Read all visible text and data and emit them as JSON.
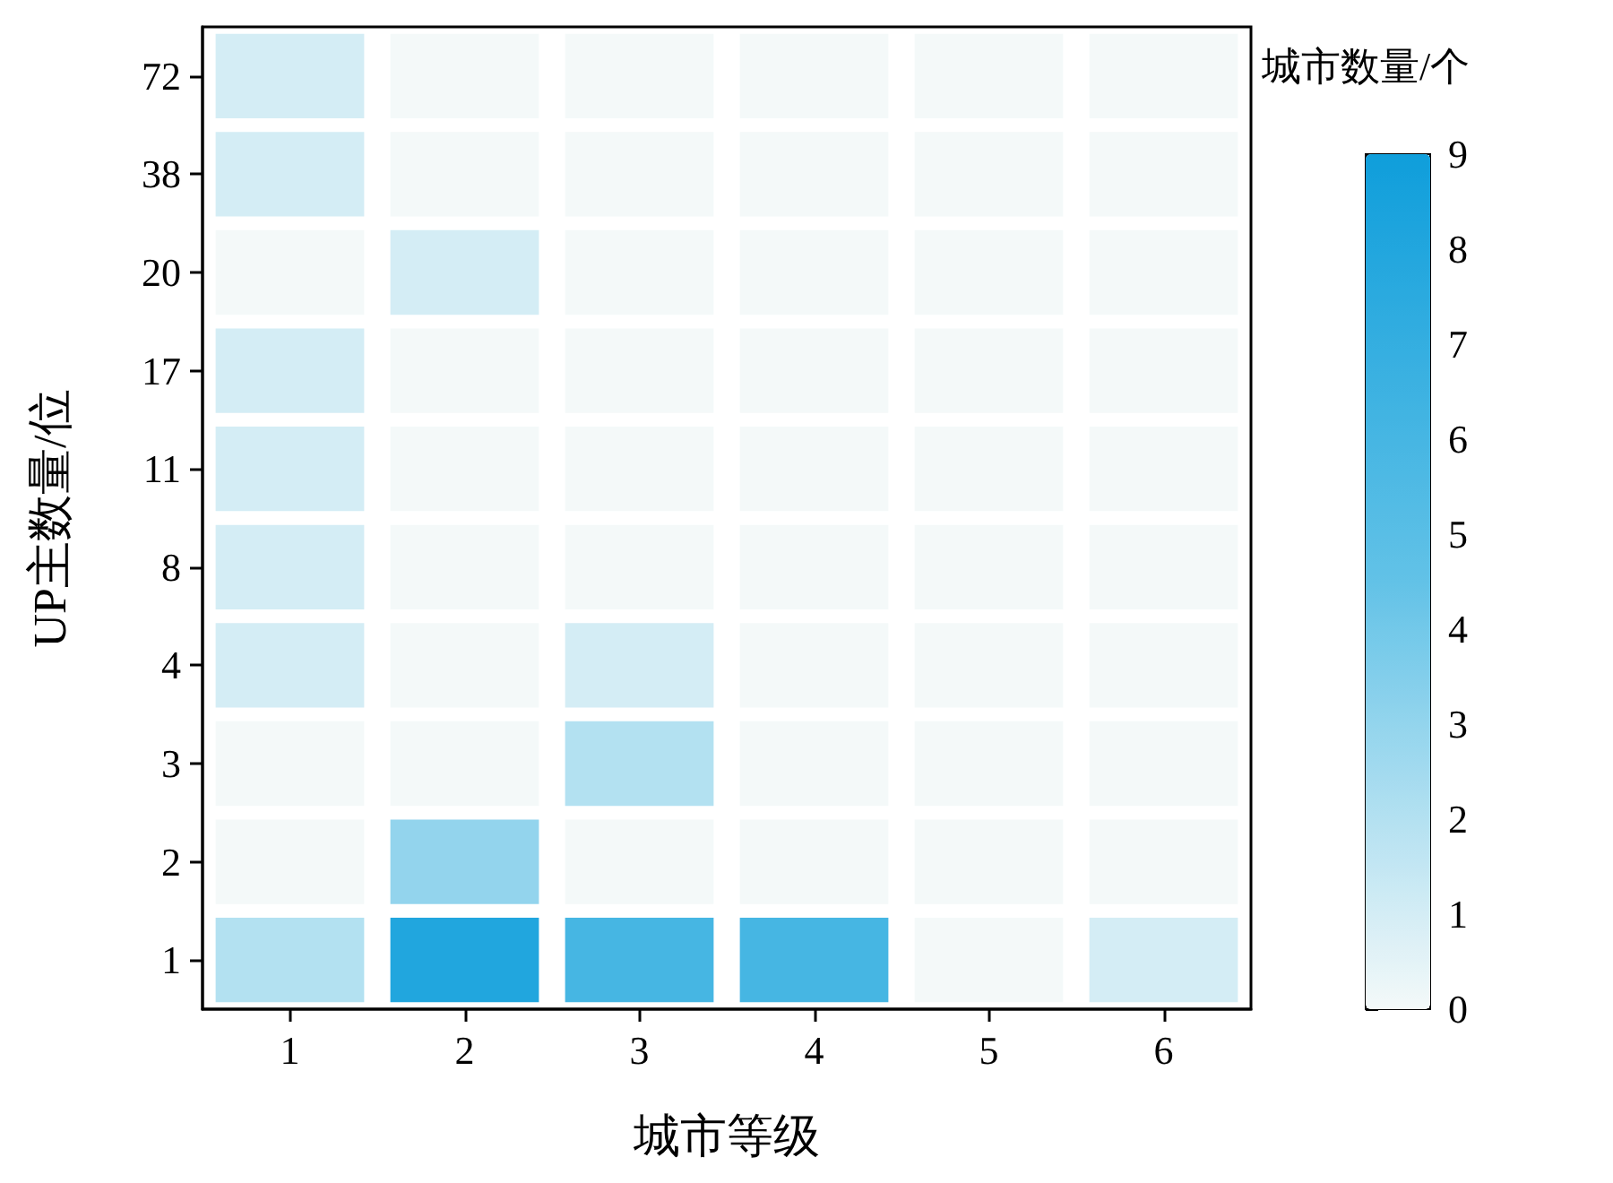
{
  "chart_data": {
    "type": "heatmap",
    "xlabel": "城市等级",
    "ylabel": "UP主数量/位",
    "clabel": "城市数量/个",
    "categories": [
      "1",
      "2",
      "3",
      "4",
      "5",
      "6"
    ],
    "y_categories": [
      "72",
      "38",
      "20",
      "17",
      "11",
      "8",
      "4",
      "3",
      "2",
      "1"
    ],
    "cells": [
      [
        1,
        0,
        0,
        0,
        0,
        0
      ],
      [
        1,
        0,
        0,
        0,
        0,
        0
      ],
      [
        0,
        1,
        0,
        0,
        0,
        0
      ],
      [
        1,
        0,
        0,
        0,
        0,
        0
      ],
      [
        1,
        0,
        0,
        0,
        0,
        0
      ],
      [
        1,
        0,
        0,
        0,
        0,
        0
      ],
      [
        1,
        0,
        1,
        0,
        0,
        0
      ],
      [
        0,
        0,
        2,
        0,
        0,
        0
      ],
      [
        0,
        3,
        0,
        0,
        0,
        0
      ],
      [
        2,
        8,
        6,
        6,
        0,
        1
      ]
    ],
    "clim": [
      0,
      9
    ],
    "cticks": [
      0,
      1,
      2,
      3,
      4,
      5,
      6,
      7,
      8,
      9
    ],
    "colors": [
      "#f4f9f9",
      "#62c2e7",
      "#0f9edb"
    ]
  }
}
